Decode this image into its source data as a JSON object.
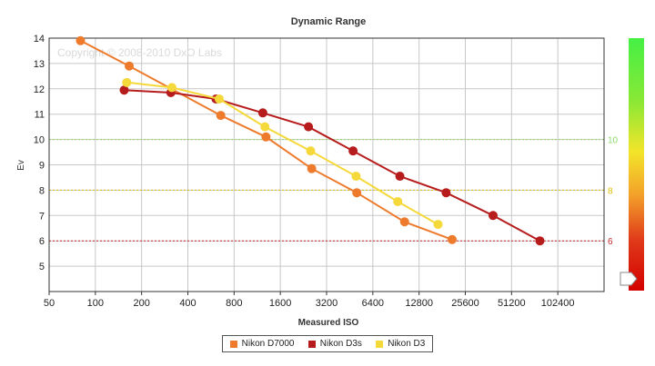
{
  "copyright": "Copyright © 2008-2010 DxO Labs",
  "colors": {
    "nikon_d7000": "#ee7a2c",
    "nikon_d3s": "#b71c1c",
    "nikon_d3": "#f5d93b",
    "ref_green": "#8ed86a",
    "ref_yellow": "#e0c000",
    "ref_red": "#c62828"
  },
  "chart_data": {
    "type": "line",
    "title": "Dynamic Range",
    "xlabel": "Measured ISO",
    "ylabel": "Ev",
    "xscale": "log2",
    "xlim": [
      50,
      204800
    ],
    "ylim": [
      4,
      14
    ],
    "x_ticks": [
      50,
      100,
      200,
      400,
      800,
      1600,
      3200,
      6400,
      12800,
      25600,
      51200,
      102400
    ],
    "x_tick_labels": [
      "50",
      "100",
      "200",
      "400",
      "800",
      "1600",
      "3200",
      "6400",
      "12800",
      "25600",
      "51200",
      "102400"
    ],
    "y_ticks": [
      4,
      5,
      6,
      7,
      8,
      9,
      10,
      11,
      12,
      13,
      14
    ],
    "y_tick_labels": [
      "",
      "5",
      "6",
      "7",
      "8",
      "9",
      "10",
      "11",
      "12",
      "13",
      "14"
    ],
    "grid": true,
    "reference_lines": [
      {
        "value": 10,
        "label": "10",
        "color_key": "ref_green"
      },
      {
        "value": 8,
        "label": "8",
        "color_key": "ref_yellow"
      },
      {
        "value": 6,
        "label": "6",
        "color_key": "ref_red"
      }
    ],
    "series": [
      {
        "name": "Nikon D7000",
        "color_key": "nikon_d7000",
        "x": [
          80,
          166,
          655,
          1290,
          2560,
          5030,
          10300,
          21000
        ],
        "y": [
          13.9,
          12.9,
          10.95,
          10.1,
          8.85,
          7.9,
          6.75,
          6.05
        ]
      },
      {
        "name": "Nikon D3s",
        "color_key": "nikon_d3s",
        "x": [
          154,
          310,
          610,
          1230,
          2440,
          4760,
          9600,
          19200,
          38800,
          78300
        ],
        "y": [
          11.95,
          11.85,
          11.6,
          11.05,
          10.5,
          9.55,
          8.55,
          7.9,
          7.0,
          6.0
        ]
      },
      {
        "name": "Nikon D3",
        "color_key": "nikon_d3",
        "x": [
          160,
          315,
          640,
          1270,
          2520,
          4980,
          9300,
          17000
        ],
        "y": [
          12.25,
          12.05,
          11.6,
          10.5,
          9.55,
          8.55,
          7.55,
          6.65
        ]
      }
    ],
    "legend_position": "bottom-center",
    "side_scale": {
      "direction": "green-top-red-bottom"
    }
  }
}
